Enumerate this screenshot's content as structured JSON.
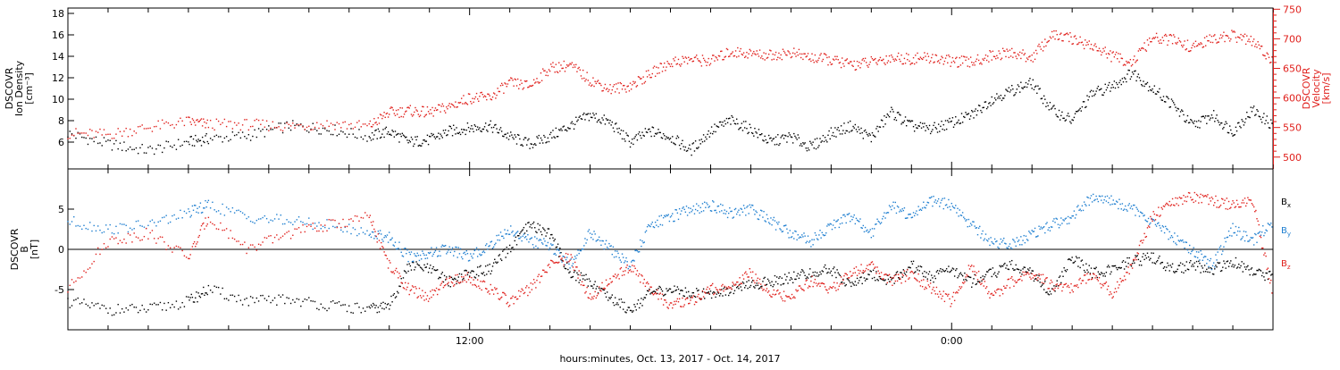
{
  "footer": {
    "xlabel": "hours:minutes, Oct. 13, 2017 - Oct. 14, 2017"
  },
  "colors": {
    "density": "#000000",
    "velocity": "#e0201c",
    "bx": "#000000",
    "by": "#1f7fd0",
    "bz": "#e0201c"
  },
  "chart_data": [
    {
      "type": "scatter",
      "panel": "top",
      "ylabel_left": [
        "DSCOVR",
        "Ion Density",
        "[cm⁻³]"
      ],
      "ylabel_right": [
        "DSCOVR",
        "Velocity",
        "[km/s]"
      ],
      "x_ticklabels": [
        "12:00",
        "0:00"
      ],
      "x_range_hours": [
        2,
        32
      ],
      "y_left": {
        "range": [
          3.5,
          18.5
        ],
        "ticks": [
          6,
          8,
          10,
          12,
          14,
          16,
          18
        ]
      },
      "y_right": {
        "range": [
          480,
          752
        ],
        "ticks": [
          500,
          550,
          600,
          650,
          700,
          750
        ]
      },
      "series": [
        {
          "key": "density",
          "axis": "left",
          "x": [
            2.0,
            3.0,
            4.0,
            5.0,
            5.5,
            6.5,
            7.5,
            8.5,
            9.5,
            10.0,
            10.5,
            11.0,
            11.5,
            12.0,
            12.5,
            13.0,
            13.5,
            14.0,
            14.5,
            15.0,
            15.5,
            16.0,
            16.5,
            17.0,
            17.5,
            18.0,
            18.5,
            19.0,
            19.5,
            20.0,
            20.5,
            21.0,
            21.5,
            22.0,
            22.5,
            23.0,
            23.5,
            24.0,
            24.5,
            25.0,
            25.5,
            26.0,
            26.5,
            27.0,
            27.5,
            28.0,
            28.5,
            29.0,
            29.5,
            30.0,
            30.5,
            31.0,
            31.5,
            32.0
          ],
          "y": [
            6.8,
            5.8,
            5.2,
            6.0,
            6.3,
            6.6,
            7.5,
            7.2,
            6.5,
            7.0,
            6.0,
            6.2,
            7.0,
            7.3,
            7.5,
            6.5,
            5.8,
            6.5,
            7.5,
            8.5,
            7.8,
            6.0,
            7.0,
            6.5,
            5.2,
            7.0,
            8.0,
            7.2,
            6.0,
            6.5,
            5.5,
            6.8,
            7.5,
            6.4,
            8.8,
            7.5,
            7.2,
            7.8,
            8.5,
            10.0,
            10.8,
            11.5,
            9.0,
            8.0,
            10.5,
            11.2,
            12.5,
            11.0,
            9.5,
            7.5,
            8.5,
            7.0,
            9.0,
            7.5
          ]
        },
        {
          "key": "velocity",
          "axis": "right",
          "x": [
            2.0,
            3.0,
            4.0,
            5.0,
            5.5,
            6.5,
            7.5,
            8.5,
            9.5,
            10.0,
            10.5,
            11.0,
            11.5,
            12.0,
            12.5,
            13.0,
            13.5,
            14.0,
            14.5,
            15.0,
            15.5,
            16.0,
            16.5,
            17.0,
            17.5,
            18.0,
            18.5,
            19.0,
            19.5,
            20.0,
            20.5,
            21.0,
            21.5,
            22.0,
            22.5,
            23.0,
            23.5,
            24.0,
            24.5,
            25.0,
            25.5,
            26.0,
            26.5,
            27.0,
            27.5,
            28.0,
            28.5,
            29.0,
            29.5,
            30.0,
            30.5,
            31.0,
            31.5,
            32.0
          ],
          "y": [
            540,
            538,
            550,
            560,
            555,
            555,
            552,
            556,
            552,
            575,
            578,
            575,
            585,
            600,
            600,
            625,
            620,
            650,
            655,
            630,
            615,
            620,
            640,
            660,
            665,
            662,
            678,
            675,
            672,
            676,
            668,
            664,
            656,
            660,
            668,
            666,
            668,
            662,
            660,
            672,
            676,
            668,
            706,
            700,
            688,
            670,
            660,
            700,
            698,
            685,
            700,
            705,
            695,
            660
          ]
        }
      ]
    },
    {
      "type": "scatter",
      "panel": "bottom",
      "ylabel_left": [
        "DSCOVR",
        "B",
        "[nT]"
      ],
      "x_ticklabels": [
        "12:00",
        "0:00"
      ],
      "x_range_hours": [
        2,
        32
      ],
      "y_left": {
        "range": [
          -10,
          10
        ],
        "ticks": [
          -5,
          0,
          5
        ]
      },
      "legend": [
        {
          "key": "bx",
          "label": "Bx",
          "base": "B",
          "sub": "x"
        },
        {
          "key": "by",
          "label": "By",
          "base": "B",
          "sub": "y"
        },
        {
          "key": "bz",
          "label": "Bz",
          "base": "B",
          "sub": "z"
        }
      ],
      "legend_placement": "right",
      "series": [
        {
          "key": "bx",
          "name": "Bx",
          "x": [
            2.0,
            3.0,
            4.0,
            5.0,
            5.5,
            6.5,
            7.5,
            8.5,
            9.5,
            10.0,
            10.5,
            11.0,
            11.5,
            12.0,
            12.5,
            13.0,
            13.5,
            14.0,
            14.5,
            15.0,
            15.5,
            16.0,
            16.5,
            17.0,
            17.5,
            18.0,
            18.5,
            19.0,
            19.5,
            20.0,
            20.5,
            21.0,
            21.5,
            22.0,
            22.5,
            23.0,
            23.5,
            24.0,
            24.5,
            25.0,
            25.5,
            26.0,
            26.5,
            27.0,
            27.5,
            28.0,
            28.5,
            29.0,
            29.5,
            30.0,
            30.5,
            31.0,
            31.5,
            32.0
          ],
          "y": [
            -6.5,
            -7.5,
            -7.5,
            -6.5,
            -5.0,
            -6.5,
            -6.2,
            -7.0,
            -7.5,
            -7.0,
            -2.0,
            -2.5,
            -4.0,
            -3.0,
            -2.5,
            0.0,
            3.0,
            2.0,
            -3.0,
            -4.0,
            -6.0,
            -7.5,
            -5.5,
            -5.0,
            -5.5,
            -5.5,
            -5.0,
            -4.5,
            -4.0,
            -3.5,
            -3.0,
            -2.5,
            -4.5,
            -3.0,
            -4.0,
            -2.0,
            -3.5,
            -2.5,
            -4.0,
            -3.0,
            -2.0,
            -3.0,
            -5.5,
            -1.0,
            -3.0,
            -2.5,
            -1.5,
            -1.0,
            -2.5,
            -2.0,
            -2.5,
            -1.5,
            -3.0,
            -3.5
          ]
        },
        {
          "key": "by",
          "name": "By",
          "x": [
            2.0,
            3.0,
            4.0,
            5.0,
            5.5,
            6.5,
            7.5,
            8.5,
            9.5,
            10.0,
            10.5,
            11.0,
            11.5,
            12.0,
            12.5,
            13.0,
            13.5,
            14.0,
            14.5,
            15.0,
            15.5,
            16.0,
            16.5,
            17.0,
            17.5,
            18.0,
            18.5,
            19.0,
            19.5,
            20.0,
            20.5,
            21.0,
            21.5,
            22.0,
            22.5,
            23.0,
            23.5,
            24.0,
            24.5,
            25.0,
            25.5,
            26.0,
            26.5,
            27.0,
            27.5,
            28.0,
            28.5,
            29.0,
            29.5,
            30.0,
            30.5,
            31.0,
            31.5,
            32.0
          ],
          "y": [
            3.5,
            2.5,
            3.0,
            4.5,
            5.5,
            4.0,
            3.5,
            3.0,
            2.0,
            1.5,
            -1.0,
            -0.5,
            0.0,
            -1.0,
            0.5,
            2.5,
            1.0,
            0.5,
            -2.0,
            2.0,
            0.0,
            -2.0,
            3.0,
            4.0,
            5.0,
            5.5,
            4.5,
            5.0,
            3.5,
            2.0,
            1.0,
            3.0,
            4.0,
            2.0,
            5.5,
            4.0,
            6.0,
            5.5,
            3.0,
            1.0,
            0.5,
            2.0,
            3.0,
            4.0,
            6.5,
            6.0,
            5.0,
            3.5,
            1.5,
            0.0,
            -2.0,
            2.5,
            1.0,
            3.5
          ]
        },
        {
          "key": "bz",
          "name": "Bz",
          "x": [
            2.0,
            3.0,
            4.0,
            5.0,
            5.5,
            6.5,
            7.5,
            8.5,
            9.5,
            10.0,
            10.5,
            11.0,
            11.5,
            12.0,
            12.5,
            13.0,
            13.5,
            14.0,
            14.5,
            15.0,
            15.5,
            16.0,
            16.5,
            17.0,
            17.5,
            18.0,
            18.5,
            19.0,
            19.5,
            20.0,
            20.5,
            21.0,
            21.5,
            22.0,
            22.5,
            23.0,
            23.5,
            24.0,
            24.5,
            25.0,
            25.5,
            26.0,
            26.5,
            27.0,
            27.5,
            28.0,
            28.5,
            29.0,
            29.5,
            30.0,
            30.5,
            31.0,
            31.5,
            32.0
          ],
          "y": [
            -5.0,
            1.0,
            2.0,
            -1.0,
            4.0,
            0.0,
            2.0,
            3.0,
            4.0,
            -2.0,
            -5.0,
            -6.0,
            -4.0,
            -3.5,
            -5.0,
            -6.5,
            -5.0,
            -2.0,
            -1.0,
            -6.0,
            -4.0,
            -2.0,
            -5.0,
            -7.0,
            -6.5,
            -5.0,
            -4.5,
            -3.0,
            -5.5,
            -6.0,
            -4.0,
            -5.0,
            -3.0,
            -2.0,
            -4.0,
            -3.0,
            -5.0,
            -6.5,
            -2.0,
            -6.0,
            -4.0,
            -3.0,
            -4.5,
            -5.0,
            -3.0,
            -5.5,
            -2.0,
            4.0,
            6.0,
            6.5,
            6.0,
            5.5,
            6.0,
            -5.5
          ]
        }
      ]
    }
  ]
}
